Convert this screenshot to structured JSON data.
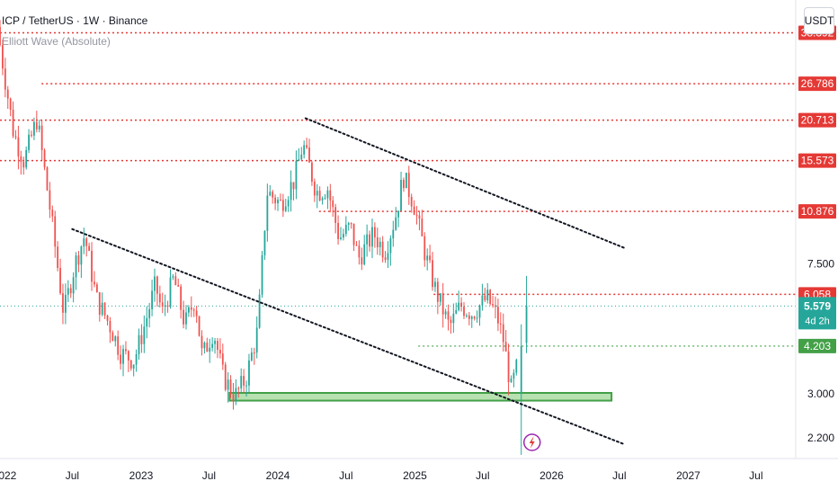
{
  "header": {
    "symbol_line": "ICP / TetherUS · 1W · Binance",
    "indicator_line": "Elliott Wave (Absolute)"
  },
  "currency_button": "USDT",
  "colors": {
    "up": "#26a69a",
    "up_body": "#26a69a",
    "down": "#ef5350",
    "level_red": "#e53935",
    "level_green": "#43a047",
    "support_zone_fill": "#b7e1b0",
    "support_zone_stroke": "#43a047",
    "trendline": "#131722",
    "price_line": "#26a69a",
    "axis_text": "#131722"
  },
  "chart_data": {
    "type": "candlestick",
    "title": "ICP / TetherUS · 1W · Binance",
    "y_scale": "log",
    "ylim": [
      1.9,
      46
    ],
    "xlim": [
      "2021-12-20",
      "2027-10-15"
    ],
    "y_tick_labels": [
      {
        "value": 7.5,
        "label": "7.500"
      },
      {
        "value": 3.0,
        "label": "3.000"
      },
      {
        "value": 2.2,
        "label": "2.200"
      }
    ],
    "x_tick_labels": [
      {
        "date": "2022-01-01",
        "label": "2022"
      },
      {
        "date": "2022-07-01",
        "label": "Jul"
      },
      {
        "date": "2023-01-01",
        "label": "2023"
      },
      {
        "date": "2023-07-01",
        "label": "Jul"
      },
      {
        "date": "2024-01-01",
        "label": "2024"
      },
      {
        "date": "2024-07-01",
        "label": "Jul"
      },
      {
        "date": "2025-01-01",
        "label": "2025"
      },
      {
        "date": "2025-07-01",
        "label": "Jul"
      },
      {
        "date": "2026-01-01",
        "label": "2026"
      },
      {
        "date": "2026-07-01",
        "label": "Jul"
      },
      {
        "date": "2027-01-01",
        "label": "2027"
      },
      {
        "date": "2027-07-01",
        "label": "Jul"
      }
    ],
    "price_path": [
      [
        "2021-12-20",
        40
      ],
      [
        "2022-01-05",
        30
      ],
      [
        "2022-02-01",
        19
      ],
      [
        "2022-03-01",
        15.5
      ],
      [
        "2022-04-05",
        21
      ],
      [
        "2022-05-15",
        10
      ],
      [
        "2022-06-15",
        5.3
      ],
      [
        "2022-07-15",
        7.5
      ],
      [
        "2022-08-10",
        9.2
      ],
      [
        "2022-09-10",
        5.9
      ],
      [
        "2022-10-15",
        4.9
      ],
      [
        "2022-11-15",
        4.0
      ],
      [
        "2022-12-20",
        3.8
      ],
      [
        "2023-01-20",
        5.0
      ],
      [
        "2023-02-15",
        6.5
      ],
      [
        "2023-03-05",
        5.3
      ],
      [
        "2023-04-05",
        6.8
      ],
      [
        "2023-05-05",
        4.9
      ],
      [
        "2023-06-01",
        5.9
      ],
      [
        "2023-06-20",
        3.9
      ],
      [
        "2023-07-20",
        4.7
      ],
      [
        "2023-08-15",
        3.4
      ],
      [
        "2023-09-15",
        2.95
      ],
      [
        "2023-10-15",
        3.35
      ],
      [
        "2023-11-15",
        4.7
      ],
      [
        "2023-12-10",
        12.5
      ],
      [
        "2024-01-15",
        11.5
      ],
      [
        "2024-02-20",
        13.5
      ],
      [
        "2024-03-15",
        17.5
      ],
      [
        "2024-04-20",
        12.5
      ],
      [
        "2024-05-20",
        12.8
      ],
      [
        "2024-06-20",
        9.0
      ],
      [
        "2024-07-20",
        9.8
      ],
      [
        "2024-08-10",
        7.8
      ],
      [
        "2024-09-20",
        9.3
      ],
      [
        "2024-10-20",
        8.2
      ],
      [
        "2024-11-20",
        10.8
      ],
      [
        "2024-12-08",
        14.0
      ],
      [
        "2025-01-05",
        11.5
      ],
      [
        "2025-02-05",
        8.0
      ],
      [
        "2025-03-05",
        6.2
      ],
      [
        "2025-04-10",
        4.8
      ],
      [
        "2025-05-10",
        5.6
      ],
      [
        "2025-06-10",
        5.3
      ],
      [
        "2025-07-20",
        5.9
      ],
      [
        "2025-08-15",
        5.2
      ],
      [
        "2025-09-01",
        4.4
      ],
      [
        "2025-09-22",
        3.1
      ],
      [
        "2025-10-12",
        3.8
      ],
      [
        "2025-10-26",
        5.58
      ]
    ],
    "key_candles": [
      {
        "date": "2025-10-12",
        "open": 3.0,
        "high": 4.9,
        "low": 1.95,
        "close": 4.2
      },
      {
        "date": "2025-10-26",
        "open": 4.3,
        "high": 6.9,
        "low": 4.0,
        "close": 5.579
      }
    ],
    "horizontal_levels": [
      {
        "price": 38.392,
        "label": "38.392",
        "color": "red",
        "from": "2021-12-20"
      },
      {
        "price": 26.786,
        "label": "26.786",
        "color": "red",
        "from": "2022-04-10"
      },
      {
        "price": 20.713,
        "label": "20.713",
        "color": "red",
        "from": "2021-12-20"
      },
      {
        "price": 15.573,
        "label": "15.573",
        "color": "red",
        "from": "2021-12-20"
      },
      {
        "price": 10.876,
        "label": "10.876",
        "color": "red",
        "from": "2024-04-20"
      },
      {
        "price": 6.058,
        "label": "6.058",
        "color": "red",
        "from": "2025-02-20"
      },
      {
        "price": 4.203,
        "label": "4.203",
        "color": "green",
        "from": "2025-01-10"
      }
    ],
    "current_price": {
      "price": 5.579,
      "label": "5.579",
      "countdown": "4d 2h"
    },
    "support_zone": {
      "from": "2023-08-25",
      "to": "2026-06-10",
      "low": 2.86,
      "high": 3.02
    },
    "trendlines": [
      {
        "from": [
          "2022-07-01",
          9.6
        ],
        "to": [
          "2026-07-15",
          2.1
        ]
      },
      {
        "from": [
          "2024-03-15",
          21.0
        ],
        "to": [
          "2026-07-15",
          8.4
        ]
      }
    ]
  }
}
